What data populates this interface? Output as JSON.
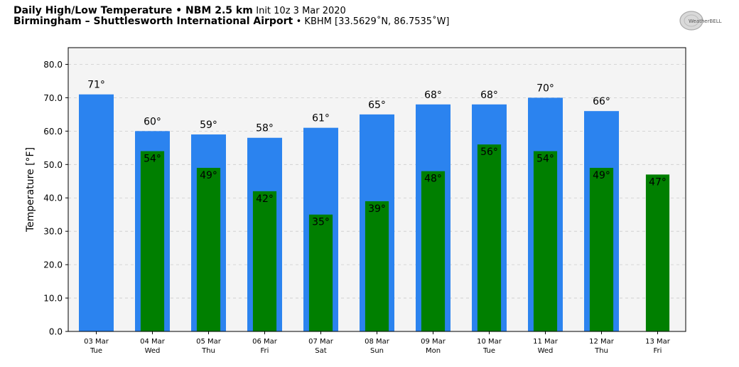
{
  "header": {
    "line1_bold": "Daily High/Low Temperature • NBM 2.5 km",
    "line1_light": "Init 10z 3 Mar 2020",
    "line2_bold": "Birmingham – Shuttlesworth International Airport",
    "line2_light": "• KBHM [33.5629˚N, 86.7535˚W]"
  },
  "logo": {
    "text": "WeatherBELL"
  },
  "chart_data": {
    "type": "bar",
    "title": "Daily High/Low Temperature • NBM 2.5 km",
    "xlabel": "",
    "ylabel": "Temperature [°F]",
    "ylim": [
      0,
      85
    ],
    "yticks": [
      0,
      10,
      20,
      30,
      40,
      50,
      60,
      70,
      80
    ],
    "ytick_labels": [
      "0.0",
      "10.0",
      "20.0",
      "30.0",
      "40.0",
      "50.0",
      "60.0",
      "70.0",
      "80.0"
    ],
    "grid": true,
    "categories": [
      {
        "date": "03 Mar",
        "day": "Tue"
      },
      {
        "date": "04 Mar",
        "day": "Wed"
      },
      {
        "date": "05 Mar",
        "day": "Thu"
      },
      {
        "date": "06 Mar",
        "day": "Fri"
      },
      {
        "date": "07 Mar",
        "day": "Sat"
      },
      {
        "date": "08 Mar",
        "day": "Sun"
      },
      {
        "date": "09 Mar",
        "day": "Mon"
      },
      {
        "date": "10 Mar",
        "day": "Tue"
      },
      {
        "date": "11 Mar",
        "day": "Wed"
      },
      {
        "date": "12 Mar",
        "day": "Thu"
      },
      {
        "date": "13 Mar",
        "day": "Fri"
      }
    ],
    "series": [
      {
        "key": "high",
        "color": "#2b83ef",
        "values": [
          71,
          60,
          59,
          58,
          61,
          65,
          68,
          68,
          70,
          66,
          null
        ]
      },
      {
        "key": "low",
        "color": "#007f00",
        "values": [
          null,
          54,
          49,
          42,
          35,
          39,
          48,
          56,
          54,
          49,
          47
        ]
      }
    ],
    "value_labels": {
      "high": [
        "71°",
        "60°",
        "59°",
        "58°",
        "61°",
        "65°",
        "68°",
        "68°",
        "70°",
        "66°",
        null
      ],
      "low": [
        null,
        "54°",
        "49°",
        "42°",
        "35°",
        "39°",
        "48°",
        "56°",
        "54°",
        "49°",
        "47°"
      ]
    },
    "colors": {
      "plot_background": "#f4f4f4",
      "grid": "#cccccc"
    }
  }
}
